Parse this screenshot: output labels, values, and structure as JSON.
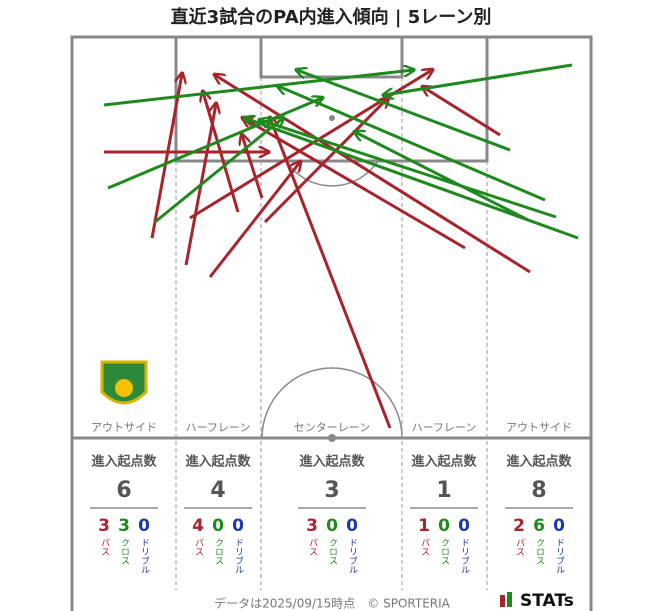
{
  "title": "直近3試合のPA内進入傾向 | 5レーン別",
  "header": "進入起点数",
  "legend": {
    "pass": "パス",
    "cross": "クロス",
    "dribble": "ドリブル"
  },
  "lanes": [
    {
      "name": "アウトサイド",
      "total": 6,
      "pass": 3,
      "cross": 3,
      "dribble": 0
    },
    {
      "name": "ハーフレーン",
      "total": 4,
      "pass": 4,
      "cross": 0,
      "dribble": 0
    },
    {
      "name": "センターレーン",
      "total": 3,
      "pass": 3,
      "cross": 0,
      "dribble": 0
    },
    {
      "name": "ハーフレーン",
      "total": 1,
      "pass": 1,
      "cross": 0,
      "dribble": 0
    },
    {
      "name": "アウトサイド",
      "total": 8,
      "pass": 2,
      "cross": 6,
      "dribble": 0
    }
  ],
  "footer": "データは2025/09/15時点　© SPORTERIA",
  "brand": "STATs"
}
